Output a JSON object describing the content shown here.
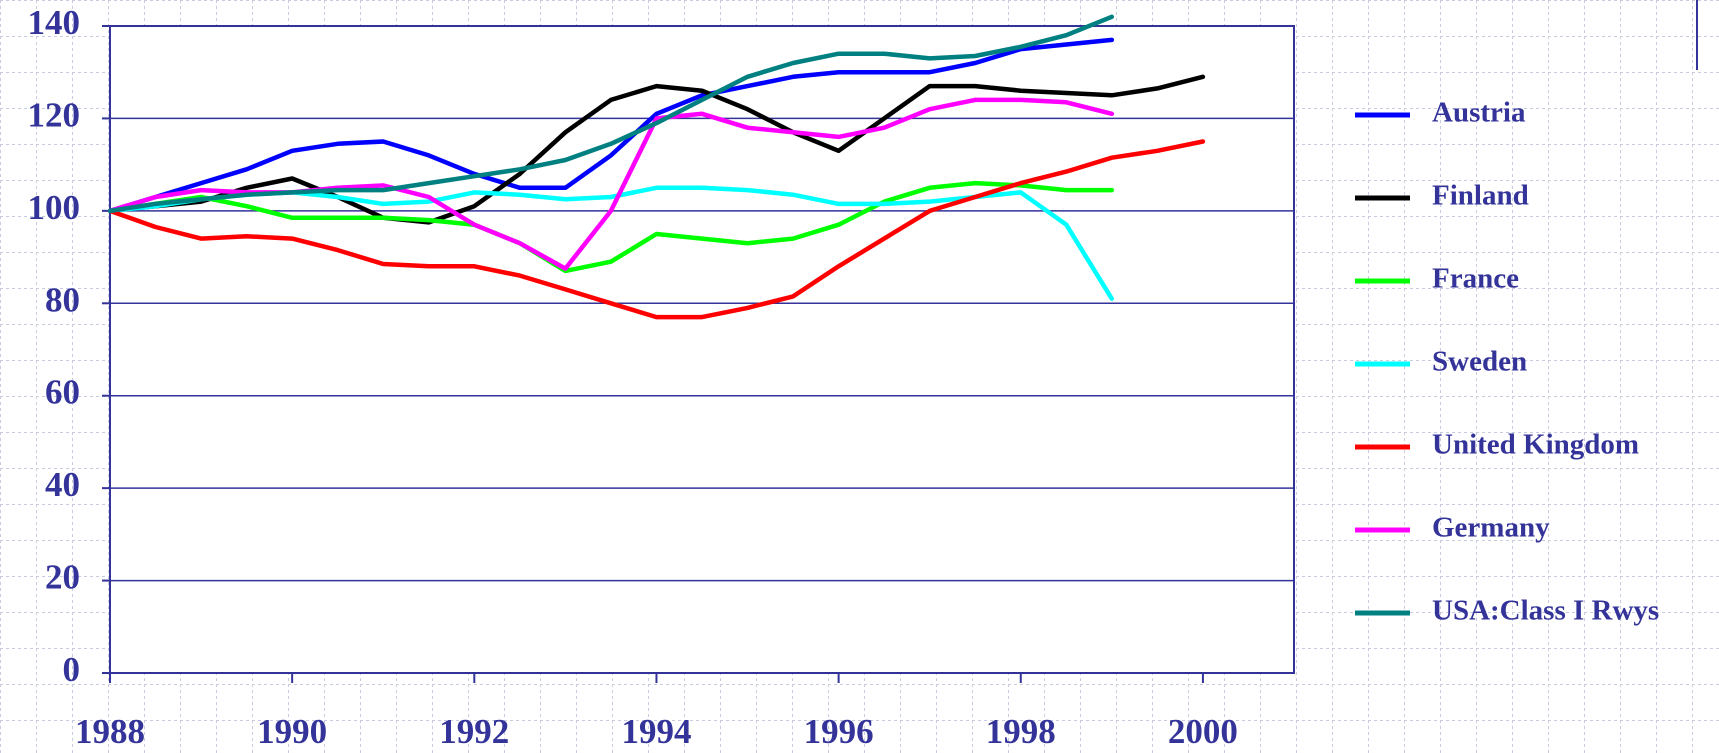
{
  "chart_data": {
    "type": "line",
    "x": [
      1988,
      1988.5,
      1989,
      1989.5,
      1990,
      1990.5,
      1991,
      1991.5,
      1992,
      1992.5,
      1993,
      1993.5,
      1994,
      1994.5,
      1995,
      1995.5,
      1996,
      1996.5,
      1997,
      1997.5,
      1998,
      1998.5,
      1999,
      1999.5,
      2000
    ],
    "series": [
      {
        "name": "Austria",
        "color": "#0000ff",
        "values": [
          100,
          103,
          106,
          109,
          113,
          114.5,
          115,
          112,
          108,
          105,
          105,
          112,
          121,
          125,
          127,
          129,
          130,
          130,
          130,
          132,
          135,
          136,
          137,
          null,
          null
        ]
      },
      {
        "name": "Finland",
        "color": "#000000",
        "values": [
          100,
          101,
          102,
          105,
          107,
          103,
          98.5,
          97.5,
          101,
          108,
          117,
          124,
          127,
          126,
          122,
          117,
          113,
          120,
          127,
          127,
          126,
          125.5,
          125,
          126.5,
          129
        ]
      },
      {
        "name": "France",
        "color": "#00ff00",
        "values": [
          100,
          101.5,
          103,
          101,
          98.5,
          98.5,
          98.5,
          98,
          97,
          93,
          87,
          89,
          95,
          94,
          93,
          94,
          97,
          102,
          105,
          106,
          105.5,
          104.5,
          104.5,
          null,
          null
        ]
      },
      {
        "name": "Sweden",
        "color": "#00ffff",
        "values": [
          100,
          101,
          102.5,
          103.5,
          104,
          103,
          101.5,
          102,
          104,
          103.5,
          102.5,
          103,
          105,
          105,
          104.5,
          103.5,
          101.5,
          101.5,
          102,
          103,
          104,
          97,
          81,
          null,
          null
        ]
      },
      {
        "name": "United Kingdom",
        "color": "#ff0000",
        "values": [
          100,
          96.5,
          94,
          94.5,
          94,
          91.5,
          88.5,
          88,
          88,
          86,
          83,
          80,
          77,
          77,
          79,
          81.5,
          88,
          94,
          100,
          103,
          106,
          108.5,
          111.5,
          113,
          115
        ]
      },
      {
        "name": "Germany",
        "color": "#ff00ff",
        "values": [
          100,
          103,
          104.5,
          104,
          104,
          105,
          105.5,
          103,
          97,
          93,
          87.5,
          100,
          120,
          121,
          118,
          117,
          116,
          118,
          122,
          124,
          124,
          123.5,
          121,
          null,
          null
        ]
      },
      {
        "name": "USA:Class I Rwys",
        "color": "#008080",
        "values": [
          100,
          101.5,
          102.5,
          103.5,
          104,
          104.5,
          104.5,
          106,
          107.5,
          109,
          111,
          114.5,
          119,
          124,
          129,
          132,
          134,
          134,
          133,
          133.5,
          135.5,
          138,
          142,
          null,
          null
        ]
      }
    ],
    "xlim": [
      1988,
      2001
    ],
    "xticks": [
      1988,
      1990,
      1992,
      1994,
      1996,
      1998,
      2000
    ],
    "ylim": [
      0,
      140
    ],
    "yticks": [
      0,
      20,
      40,
      60,
      80,
      100,
      120,
      140
    ],
    "grid": true,
    "legend": "right"
  }
}
